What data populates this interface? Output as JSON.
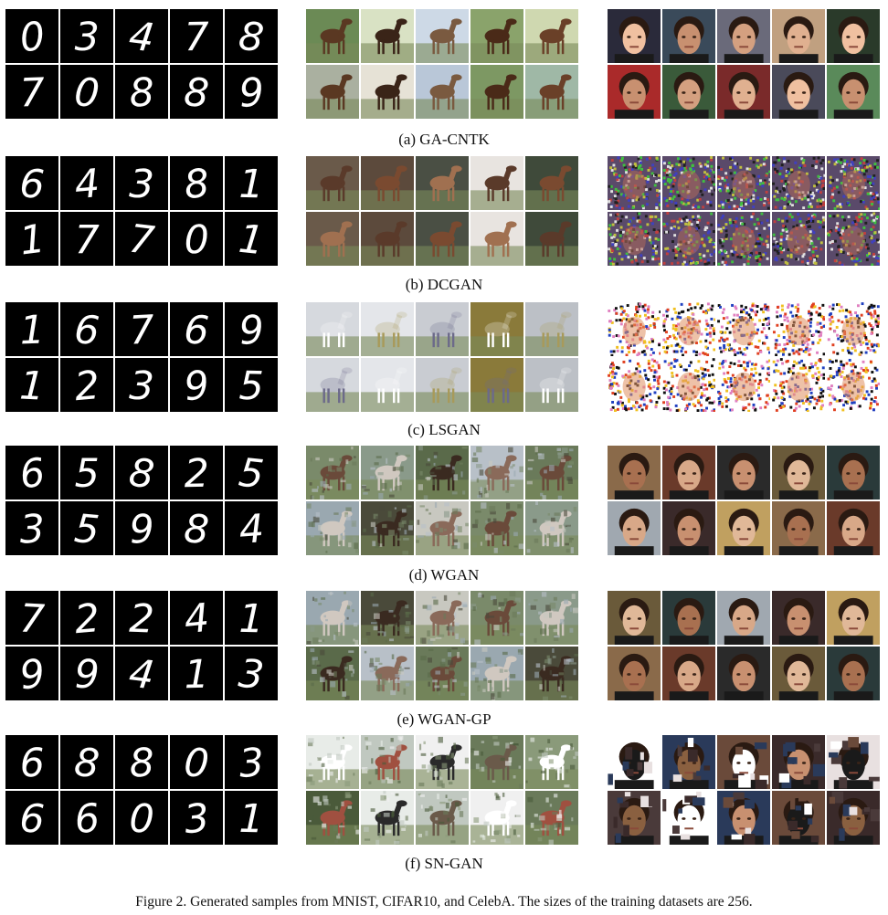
{
  "rows": [
    {
      "caption": "(a) GA-CNTK",
      "mnist_digits": [
        "0",
        "3",
        "4",
        "7",
        "8",
        "7",
        "0",
        "8",
        "8",
        "9"
      ],
      "cifar_style": "horses-clean",
      "celeba_style": "faces-clean"
    },
    {
      "caption": "(b) DCGAN",
      "mnist_digits": [
        "6",
        "4",
        "3",
        "8",
        "1",
        "1",
        "7",
        "7",
        "0",
        "1"
      ],
      "cifar_style": "horses-repeated",
      "celeba_style": "noise-repeated"
    },
    {
      "caption": "(c) LSGAN",
      "mnist_digits": [
        "1",
        "6",
        "7",
        "6",
        "9",
        "1",
        "2",
        "3",
        "9",
        "5"
      ],
      "cifar_style": "collapsed-gray",
      "celeba_style": "collapsed-colorful"
    },
    {
      "caption": "(d) WGAN",
      "mnist_digits": [
        "6",
        "5",
        "8",
        "2",
        "5",
        "3",
        "5",
        "9",
        "8",
        "4"
      ],
      "cifar_style": "horses-blurry",
      "celeba_style": "faces-blurry"
    },
    {
      "caption": "(e) WGAN-GP",
      "mnist_digits": [
        "7",
        "2",
        "2",
        "4",
        "1",
        "9",
        "9",
        "4",
        "1",
        "3"
      ],
      "cifar_style": "horses-blurry",
      "celeba_style": "faces-blurry"
    },
    {
      "caption": "(f) SN-GAN",
      "mnist_digits": [
        "6",
        "8",
        "8",
        "0",
        "3",
        "6",
        "6",
        "0",
        "3",
        "1"
      ],
      "cifar_style": "horses-noisy",
      "celeba_style": "faces-broken"
    }
  ],
  "figure_caption": "Figure 2. Generated samples from MNIST, CIFAR10, and CelebA. The sizes of the training datasets are 256."
}
